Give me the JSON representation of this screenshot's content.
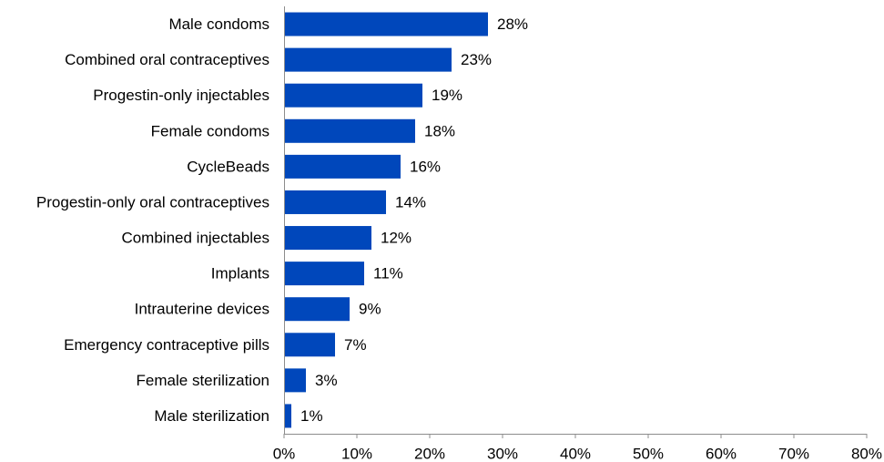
{
  "chart_data": {
    "type": "bar",
    "orientation": "horizontal",
    "title": "",
    "xlabel": "",
    "ylabel": "",
    "categories": [
      "Male condoms",
      "Combined oral contraceptives",
      "Progestin-only injectables",
      "Female condoms",
      "CycleBeads",
      "Progestin-only oral contraceptives",
      "Combined injectables",
      "Implants",
      "Intrauterine devices",
      "Emergency contraceptive pills",
      "Female sterilization",
      "Male sterilization"
    ],
    "values": [
      28,
      23,
      19,
      18,
      16,
      14,
      12,
      11,
      9,
      7,
      3,
      1
    ],
    "value_labels": [
      "28%",
      "23%",
      "19%",
      "18%",
      "16%",
      "14%",
      "12%",
      "11%",
      "9%",
      "7%",
      "3%",
      "1%"
    ],
    "xlim": [
      0,
      80
    ],
    "x_ticks": [
      0,
      10,
      20,
      30,
      40,
      50,
      60,
      70,
      80
    ],
    "x_tick_labels": [
      "0%",
      "10%",
      "20%",
      "30%",
      "40%",
      "50%",
      "60%",
      "70%",
      "80%"
    ],
    "bar_color": "#0047BB",
    "grid": false,
    "legend": "none"
  }
}
